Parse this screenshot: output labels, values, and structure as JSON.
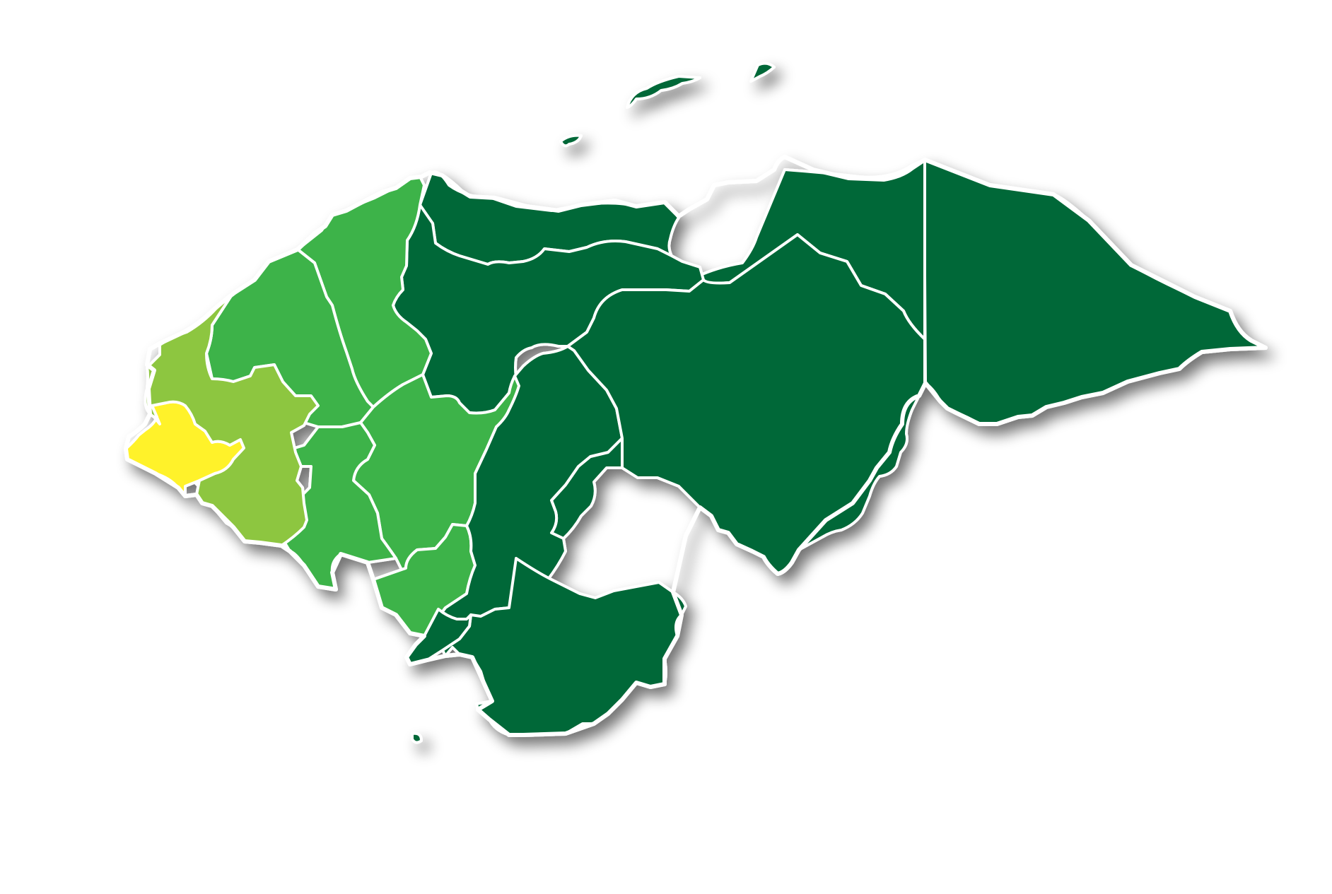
{
  "map": {
    "palette": {
      "dark_green": "#026838",
      "medium_green": "#3cb34a",
      "light_green": "#8dc63f",
      "yellow": "#fff22b",
      "border": "#ffffff",
      "shadow": "#000000"
    },
    "regions": [
      {
        "id": "ocotepeque",
        "color": "#fff22b",
        "shade": "yellow"
      },
      {
        "id": "copan",
        "color": "#8dc63f",
        "shade": "light-green"
      },
      {
        "id": "lempira",
        "color": "#8dc63f",
        "shade": "light-green"
      },
      {
        "id": "cortes",
        "color": "#3cb34a",
        "shade": "medium-green"
      },
      {
        "id": "santa-barbara",
        "color": "#3cb34a",
        "shade": "medium-green"
      },
      {
        "id": "intibuca",
        "color": "#3cb34a",
        "shade": "medium-green"
      },
      {
        "id": "la-paz",
        "color": "#3cb34a",
        "shade": "medium-green"
      },
      {
        "id": "comayagua",
        "color": "#3cb34a",
        "shade": "medium-green"
      },
      {
        "id": "atlantida",
        "color": "#026838",
        "shade": "dark-green"
      },
      {
        "id": "yoro",
        "color": "#026838",
        "shade": "dark-green"
      },
      {
        "id": "colon",
        "color": "#026838",
        "shade": "dark-green"
      },
      {
        "id": "gracias-a-dios",
        "color": "#026838",
        "shade": "dark-green"
      },
      {
        "id": "olancho",
        "color": "#026838",
        "shade": "dark-green"
      },
      {
        "id": "francisco-morazan",
        "color": "#026838",
        "shade": "dark-green"
      },
      {
        "id": "el-paraiso",
        "color": "#026838",
        "shade": "dark-green"
      },
      {
        "id": "valle",
        "color": "#026838",
        "shade": "dark-green"
      },
      {
        "id": "choluteca",
        "color": "#026838",
        "shade": "dark-green"
      },
      {
        "id": "islas-de-la-bahia",
        "color": "#026838",
        "shade": "dark-green"
      }
    ]
  }
}
